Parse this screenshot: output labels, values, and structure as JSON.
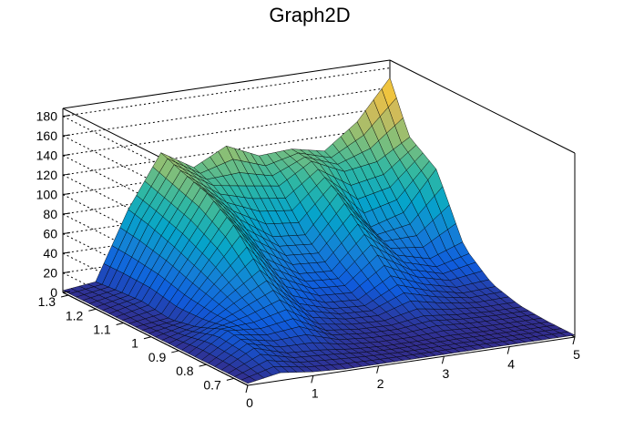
{
  "chart_data": {
    "type": "surface",
    "title": "Graph2D",
    "xlabel": "",
    "ylabel": "",
    "zlabel": "",
    "xlim": [
      0,
      5
    ],
    "ylim": [
      0.65,
      1.32
    ],
    "zlim": [
      0,
      188
    ],
    "x_ticks": [
      "0",
      "1",
      "2",
      "3",
      "4",
      "5"
    ],
    "y_ticks": [
      "0.7",
      "0.8",
      "0.9",
      "1",
      "1.1",
      "1.2",
      "1.3"
    ],
    "z_ticks": [
      "0",
      "20",
      "40",
      "60",
      "80",
      "100",
      "120",
      "140",
      "160",
      "180"
    ],
    "grid": true,
    "colormap": [
      "#352a87",
      "#0f5cdd",
      "#1481d6",
      "#06a4ca",
      "#2eb7a4",
      "#87bf77",
      "#d1bb59",
      "#fec832",
      "#f9fb0e"
    ],
    "mesh_x": [
      0.0,
      0.5,
      1.0,
      1.5,
      2.0,
      2.5,
      3.0,
      3.5,
      4.0,
      4.5,
      5.0
    ],
    "mesh_y": [
      0.65,
      0.75,
      0.85,
      0.95,
      1.05,
      1.15,
      1.25,
      1.32
    ],
    "z": [
      [
        2,
        2,
        2,
        2,
        2,
        2,
        2,
        2
      ],
      [
        8,
        20,
        24,
        12,
        6,
        10,
        8,
        6
      ],
      [
        4,
        10,
        22,
        35,
        48,
        60,
        70,
        75
      ],
      [
        2,
        8,
        28,
        55,
        90,
        110,
        120,
        128
      ],
      [
        2,
        4,
        10,
        25,
        50,
        78,
        100,
        108
      ],
      [
        2,
        2,
        6,
        14,
        30,
        55,
        95,
        125
      ],
      [
        2,
        2,
        5,
        12,
        28,
        52,
        90,
        110
      ],
      [
        2,
        3,
        10,
        30,
        60,
        90,
        110,
        112
      ],
      [
        2,
        2,
        6,
        18,
        35,
        50,
        95,
        105
      ],
      [
        2,
        2,
        4,
        10,
        25,
        60,
        100,
        130
      ],
      [
        2,
        2,
        4,
        12,
        35,
        100,
        120,
        170
      ]
    ]
  }
}
